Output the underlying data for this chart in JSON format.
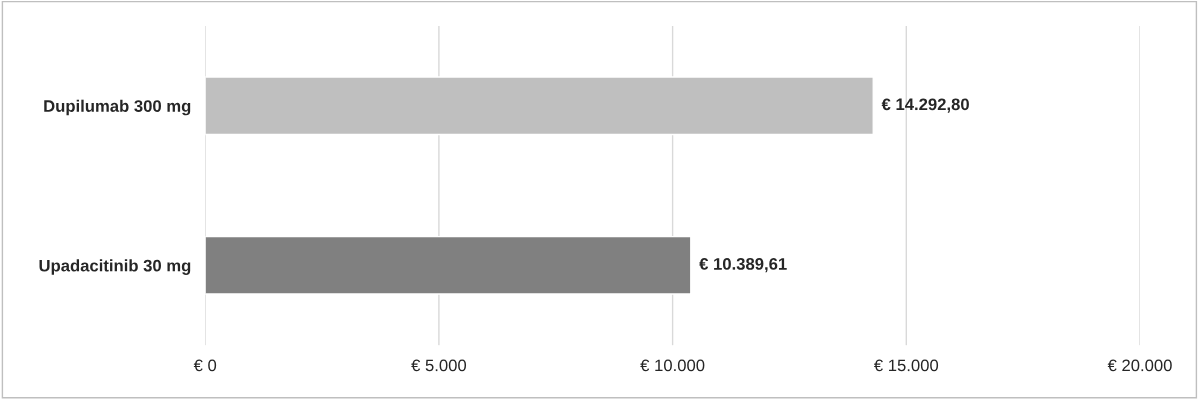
{
  "chart_data": {
    "type": "bar",
    "orientation": "horizontal",
    "categories": [
      "Dupilumab 300 mg",
      "Upadacitinib 30 mg"
    ],
    "values": [
      14292.8,
      10389.61
    ],
    "colors": [
      "#bfbfbf",
      "#808080"
    ],
    "value_labels": [
      "€ 14.292,80",
      "€ 10.389,61"
    ],
    "xlim": [
      0,
      20000
    ],
    "xticks": [
      {
        "value": 0,
        "label": "€ 0"
      },
      {
        "value": 5000,
        "label": "€ 5.000"
      },
      {
        "value": 10000,
        "label": "€ 10.000"
      },
      {
        "value": 15000,
        "label": "€ 15.000"
      },
      {
        "value": 20000,
        "label": "€ 20.000"
      }
    ],
    "grid": "x"
  }
}
